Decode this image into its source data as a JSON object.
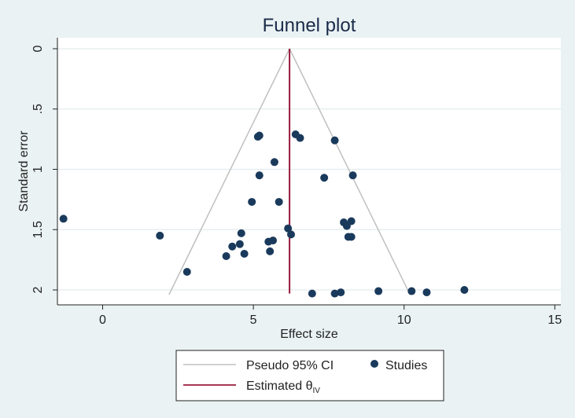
{
  "chart_data": {
    "type": "scatter",
    "title": "Funnel plot",
    "xlabel": "Effect size",
    "ylabel": "Standard error",
    "xlim": [
      -1.5,
      15.2
    ],
    "ylim": [
      0,
      2.13
    ],
    "y_reversed": true,
    "x_ticks": [
      0,
      5,
      10,
      15
    ],
    "x_tick_labels": [
      "0",
      "5",
      "10",
      "15"
    ],
    "y_ticks": [
      0,
      0.5,
      1,
      1.5,
      2
    ],
    "y_tick_labels": [
      "0",
      ".5",
      "1",
      "1.5",
      "2"
    ],
    "grid": "horizontal",
    "legend_position": "bottom",
    "estimated_effect": 6.2,
    "ci_lines": {
      "name": "Pseudo 95% CI",
      "apex": [
        6.2,
        0
      ],
      "left_end": [
        2.2,
        2.04
      ],
      "right_end": [
        10.2,
        2.04
      ],
      "color": "#c0c0c0"
    },
    "estimate_line": {
      "name_main": "Estimated θ",
      "name_sub": "IV",
      "color": "#9a1b3c"
    },
    "series": [
      {
        "name": "Studies",
        "color": "#1a3a5c",
        "points": [
          [
            -1.3,
            1.41
          ],
          [
            1.9,
            1.55
          ],
          [
            2.8,
            1.85
          ],
          [
            4.1,
            1.72
          ],
          [
            4.3,
            1.64
          ],
          [
            4.55,
            1.62
          ],
          [
            4.6,
            1.53
          ],
          [
            4.7,
            1.7
          ],
          [
            4.95,
            1.27
          ],
          [
            5.15,
            0.73
          ],
          [
            5.2,
            0.72
          ],
          [
            5.2,
            1.05
          ],
          [
            5.5,
            1.6
          ],
          [
            5.55,
            1.68
          ],
          [
            5.65,
            1.59
          ],
          [
            5.7,
            0.94
          ],
          [
            5.85,
            1.27
          ],
          [
            6.15,
            1.49
          ],
          [
            6.25,
            1.54
          ],
          [
            6.4,
            0.71
          ],
          [
            6.55,
            0.74
          ],
          [
            6.95,
            2.03
          ],
          [
            7.35,
            1.07
          ],
          [
            7.7,
            0.76
          ],
          [
            7.7,
            2.03
          ],
          [
            7.9,
            2.02
          ],
          [
            8.0,
            1.44
          ],
          [
            8.1,
            1.47
          ],
          [
            8.15,
            1.56
          ],
          [
            8.25,
            1.43
          ],
          [
            8.25,
            1.56
          ],
          [
            8.3,
            1.05
          ],
          [
            9.15,
            2.01
          ],
          [
            10.25,
            2.01
          ],
          [
            10.75,
            2.02
          ],
          [
            12.0,
            2.0
          ]
        ]
      }
    ]
  }
}
